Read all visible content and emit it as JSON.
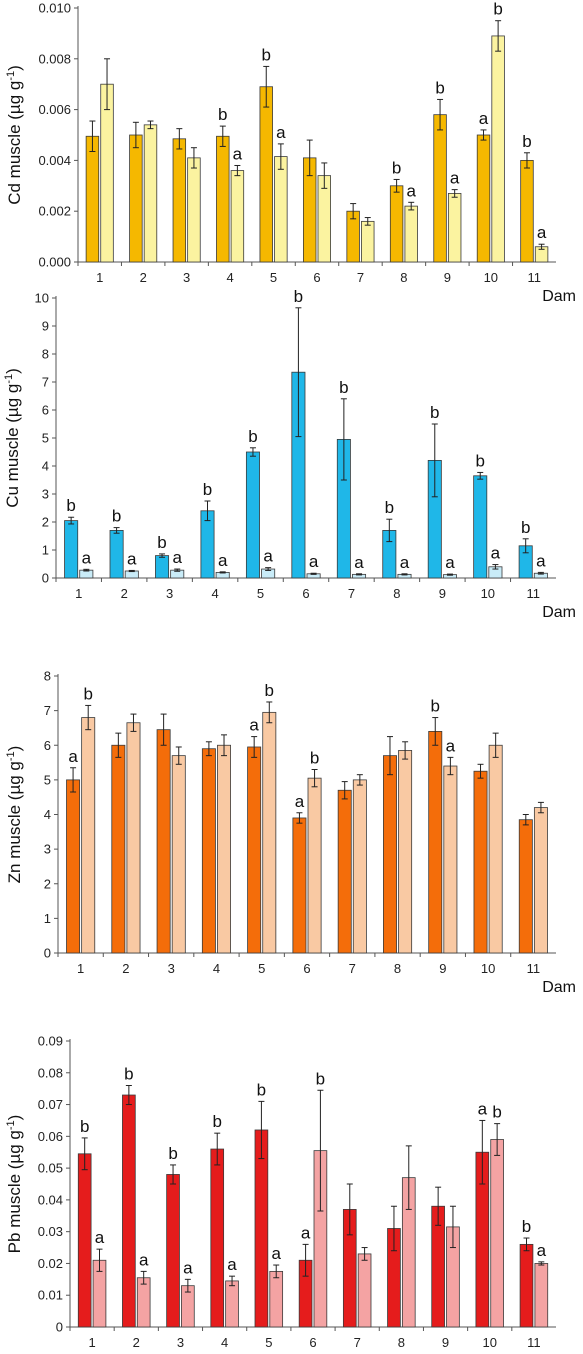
{
  "chart_data": [
    {
      "type": "bar",
      "ylabel_prefix": "Cd muscle (µg g",
      "ylabel_exp": "-1",
      "ylabel_suffix": ")",
      "xlabel": "Dam",
      "categories": [
        "1",
        "2",
        "3",
        "4",
        "5",
        "6",
        "7",
        "8",
        "9",
        "10",
        "11"
      ],
      "ylim": [
        0,
        0.01
      ],
      "yticks": [
        "0.000",
        "0.002",
        "0.004",
        "0.006",
        "0.008",
        "0.010"
      ],
      "colors": [
        "#f5b800",
        "#fbf3a0"
      ],
      "series": [
        {
          "values": [
            0.00495,
            0.005,
            0.00485,
            0.00495,
            0.0069,
            0.0041,
            0.002,
            0.003,
            0.0058,
            0.005,
            0.004
          ],
          "errors": [
            0.0006,
            0.0005,
            0.0004,
            0.0004,
            0.0008,
            0.0007,
            0.0003,
            0.00025,
            0.0006,
            0.0002,
            0.0003
          ],
          "labels": [
            "",
            "",
            "",
            "b",
            "b",
            "",
            "",
            "b",
            "b",
            "a",
            "b"
          ]
        },
        {
          "values": [
            0.007,
            0.0054,
            0.0041,
            0.0036,
            0.00415,
            0.0034,
            0.0016,
            0.0022,
            0.0027,
            0.0089,
            0.0006
          ],
          "errors": [
            0.001,
            0.00015,
            0.0004,
            0.0002,
            0.0005,
            0.0005,
            0.00015,
            0.00015,
            0.00015,
            0.0006,
            0.0001
          ],
          "labels": [
            "",
            "",
            "",
            "a",
            "a",
            "",
            "",
            "a",
            "a",
            "b",
            "a"
          ]
        }
      ]
    },
    {
      "type": "bar",
      "ylabel_prefix": "Cu muscle (µg g",
      "ylabel_exp": "-1",
      "ylabel_suffix": ")",
      "xlabel": "Dam",
      "categories": [
        "1",
        "2",
        "3",
        "4",
        "5",
        "6",
        "7",
        "8",
        "9",
        "10",
        "11"
      ],
      "ylim": [
        0,
        10
      ],
      "yticks": [
        "0",
        "1",
        "2",
        "3",
        "4",
        "5",
        "6",
        "7",
        "8",
        "9",
        "10"
      ],
      "colors": [
        "#1fb7e8",
        "#c9ecf8"
      ],
      "series": [
        {
          "values": [
            2.05,
            1.7,
            0.8,
            2.4,
            4.5,
            7.35,
            4.95,
            1.7,
            4.2,
            3.65,
            1.15
          ],
          "errors": [
            0.12,
            0.1,
            0.06,
            0.35,
            0.15,
            2.3,
            1.45,
            0.4,
            1.3,
            0.12,
            0.25
          ],
          "labels": [
            "b",
            "b",
            "b",
            "b",
            "b",
            "b",
            "b",
            "b",
            "b",
            "b",
            "b"
          ]
        },
        {
          "values": [
            0.28,
            0.25,
            0.28,
            0.2,
            0.32,
            0.15,
            0.13,
            0.13,
            0.12,
            0.4,
            0.17
          ],
          "errors": [
            0.03,
            0.02,
            0.04,
            0.02,
            0.05,
            0.02,
            0.02,
            0.02,
            0.02,
            0.08,
            0.03
          ],
          "labels": [
            "a",
            "a",
            "a",
            "a",
            "a",
            "a",
            "a",
            "a",
            "a",
            "a",
            "a"
          ]
        }
      ]
    },
    {
      "type": "bar",
      "ylabel_prefix": "Zn muscle (µg g",
      "ylabel_exp": "-1",
      "ylabel_suffix": ")",
      "xlabel": "Dam",
      "categories": [
        "1",
        "2",
        "3",
        "4",
        "5",
        "6",
        "7",
        "8",
        "9",
        "10",
        "11"
      ],
      "ylim": [
        0,
        8
      ],
      "yticks": [
        "0",
        "1",
        "2",
        "3",
        "4",
        "5",
        "6",
        "7",
        "8"
      ],
      "colors": [
        "#f46d0a",
        "#f9c9a3"
      ],
      "series": [
        {
          "values": [
            5.0,
            6.0,
            6.45,
            5.9,
            5.95,
            3.9,
            4.7,
            5.7,
            6.4,
            5.25,
            3.85
          ],
          "errors": [
            0.35,
            0.35,
            0.45,
            0.2,
            0.3,
            0.15,
            0.25,
            0.55,
            0.4,
            0.2,
            0.15
          ],
          "labels": [
            "a",
            "",
            "",
            "",
            "a",
            "a",
            "",
            "",
            "b",
            "",
            ""
          ]
        },
        {
          "values": [
            6.8,
            6.65,
            5.7,
            6.0,
            6.95,
            5.05,
            5.0,
            5.85,
            5.4,
            6.0,
            4.2
          ],
          "errors": [
            0.35,
            0.25,
            0.25,
            0.3,
            0.3,
            0.25,
            0.15,
            0.25,
            0.25,
            0.35,
            0.15
          ],
          "labels": [
            "b",
            "",
            "",
            "",
            "b",
            "b",
            "",
            "",
            "a",
            "",
            ""
          ]
        }
      ]
    },
    {
      "type": "bar",
      "ylabel_prefix": "Pb muscle (µg g",
      "ylabel_exp": "-1",
      "ylabel_suffix": ")",
      "xlabel": "Dam",
      "categories": [
        "1",
        "2",
        "3",
        "4",
        "5",
        "6",
        "7",
        "8",
        "9",
        "10",
        "11"
      ],
      "ylim": [
        0,
        0.09
      ],
      "yticks": [
        "0",
        "0.01",
        "0.02",
        "0.03",
        "0.04",
        "0.05",
        "0.06",
        "0.07",
        "0.08",
        "0.09"
      ],
      "colors": [
        "#e51c1c",
        "#f4a3a3"
      ],
      "series": [
        {
          "values": [
            0.0545,
            0.073,
            0.048,
            0.056,
            0.062,
            0.021,
            0.037,
            0.031,
            0.038,
            0.055,
            0.026
          ],
          "errors": [
            0.005,
            0.003,
            0.003,
            0.005,
            0.009,
            0.005,
            0.008,
            0.007,
            0.006,
            0.01,
            0.002
          ],
          "labels": [
            "b",
            "b",
            "b",
            "b",
            "b",
            "a",
            "",
            "",
            "",
            "a",
            "b"
          ]
        },
        {
          "values": [
            0.021,
            0.0155,
            0.013,
            0.0145,
            0.0175,
            0.0555,
            0.023,
            0.047,
            0.0315,
            0.059,
            0.02
          ],
          "errors": [
            0.0035,
            0.002,
            0.002,
            0.0015,
            0.002,
            0.019,
            0.002,
            0.01,
            0.0065,
            0.005,
            0.0005
          ],
          "labels": [
            "a",
            "a",
            "a",
            "a",
            "a",
            "b",
            "",
            "",
            "",
            "b",
            "a"
          ]
        }
      ]
    }
  ]
}
